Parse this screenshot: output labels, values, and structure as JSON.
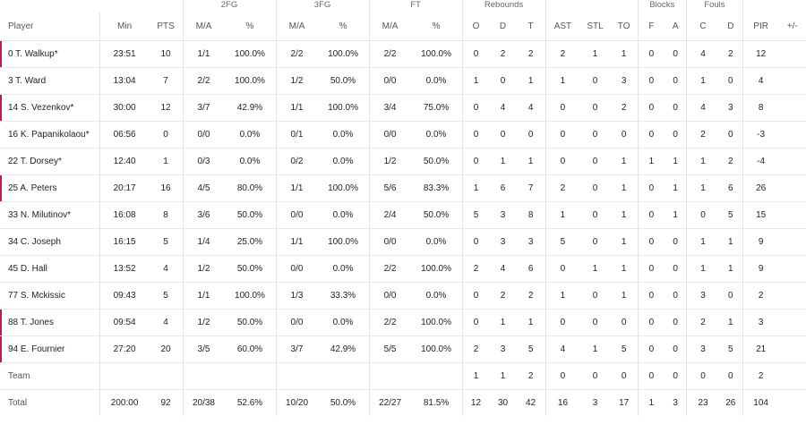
{
  "groups": {
    "fg2": "2FG",
    "fg3": "3FG",
    "ft": "FT",
    "rebounds": "Rebounds",
    "blocks": "Blocks",
    "fouls": "Fouls"
  },
  "headers": [
    "Player",
    "Min",
    "PTS",
    "M/A",
    "%",
    "M/A",
    "%",
    "M/A",
    "%",
    "O",
    "D",
    "T",
    "AST",
    "STL",
    "TO",
    "F",
    "A",
    "C",
    "D",
    "PIR",
    "+/-"
  ],
  "accent_color": "#c2185b",
  "rows": [
    {
      "player": "0 T. Walkup*",
      "accent": true,
      "cells": [
        "23:51",
        "10",
        "1/1",
        "100.0%",
        "2/2",
        "100.0%",
        "2/2",
        "100.0%",
        "0",
        "2",
        "2",
        "2",
        "1",
        "1",
        "0",
        "0",
        "4",
        "2",
        "12",
        ""
      ]
    },
    {
      "player": "3 T. Ward",
      "accent": false,
      "cells": [
        "13:04",
        "7",
        "2/2",
        "100.0%",
        "1/2",
        "50.0%",
        "0/0",
        "0.0%",
        "1",
        "0",
        "1",
        "1",
        "0",
        "3",
        "0",
        "0",
        "1",
        "0",
        "4",
        ""
      ]
    },
    {
      "player": "14 S. Vezenkov*",
      "accent": true,
      "cells": [
        "30:00",
        "12",
        "3/7",
        "42.9%",
        "1/1",
        "100.0%",
        "3/4",
        "75.0%",
        "0",
        "4",
        "4",
        "0",
        "0",
        "2",
        "0",
        "0",
        "4",
        "3",
        "8",
        ""
      ]
    },
    {
      "player": "16 K. Papanikolaou*",
      "accent": false,
      "cells": [
        "06:56",
        "0",
        "0/0",
        "0.0%",
        "0/1",
        "0.0%",
        "0/0",
        "0.0%",
        "0",
        "0",
        "0",
        "0",
        "0",
        "0",
        "0",
        "0",
        "2",
        "0",
        "-3",
        ""
      ]
    },
    {
      "player": "22 T. Dorsey*",
      "accent": false,
      "cells": [
        "12:40",
        "1",
        "0/3",
        "0.0%",
        "0/2",
        "0.0%",
        "1/2",
        "50.0%",
        "0",
        "1",
        "1",
        "0",
        "0",
        "1",
        "1",
        "1",
        "1",
        "2",
        "-4",
        ""
      ]
    },
    {
      "player": "25 A. Peters",
      "accent": true,
      "cells": [
        "20:17",
        "16",
        "4/5",
        "80.0%",
        "1/1",
        "100.0%",
        "5/6",
        "83.3%",
        "1",
        "6",
        "7",
        "2",
        "0",
        "1",
        "0",
        "1",
        "1",
        "6",
        "26",
        ""
      ]
    },
    {
      "player": "33 N. Milutinov*",
      "accent": false,
      "cells": [
        "16:08",
        "8",
        "3/6",
        "50.0%",
        "0/0",
        "0.0%",
        "2/4",
        "50.0%",
        "5",
        "3",
        "8",
        "1",
        "0",
        "1",
        "0",
        "1",
        "0",
        "5",
        "15",
        ""
      ]
    },
    {
      "player": "34 C. Joseph",
      "accent": false,
      "cells": [
        "16:15",
        "5",
        "1/4",
        "25.0%",
        "1/1",
        "100.0%",
        "0/0",
        "0.0%",
        "0",
        "3",
        "3",
        "5",
        "0",
        "1",
        "0",
        "0",
        "1",
        "1",
        "9",
        ""
      ]
    },
    {
      "player": "45 D. Hall",
      "accent": false,
      "cells": [
        "13:52",
        "4",
        "1/2",
        "50.0%",
        "0/0",
        "0.0%",
        "2/2",
        "100.0%",
        "2",
        "4",
        "6",
        "0",
        "1",
        "1",
        "0",
        "0",
        "1",
        "1",
        "9",
        ""
      ]
    },
    {
      "player": "77 S. Mckissic",
      "accent": false,
      "cells": [
        "09:43",
        "5",
        "1/1",
        "100.0%",
        "1/3",
        "33.3%",
        "0/0",
        "0.0%",
        "0",
        "2",
        "2",
        "1",
        "0",
        "1",
        "0",
        "0",
        "3",
        "0",
        "2",
        ""
      ]
    },
    {
      "player": "88 T. Jones",
      "accent": true,
      "cells": [
        "09:54",
        "4",
        "1/2",
        "50.0%",
        "0/0",
        "0.0%",
        "2/2",
        "100.0%",
        "0",
        "1",
        "1",
        "0",
        "0",
        "0",
        "0",
        "0",
        "2",
        "1",
        "3",
        ""
      ]
    },
    {
      "player": "94 E. Fournier",
      "accent": true,
      "cells": [
        "27:20",
        "20",
        "3/5",
        "60.0%",
        "3/7",
        "42.9%",
        "5/5",
        "100.0%",
        "2",
        "3",
        "5",
        "4",
        "1",
        "5",
        "0",
        "0",
        "3",
        "5",
        "21",
        ""
      ]
    },
    {
      "player": "Team",
      "accent": false,
      "kind": "team",
      "cells": [
        "",
        "",
        "",
        "",
        "",
        "",
        "",
        "",
        "1",
        "1",
        "2",
        "0",
        "0",
        "0",
        "0",
        "0",
        "0",
        "0",
        "2",
        ""
      ]
    },
    {
      "player": "Total",
      "accent": false,
      "kind": "total",
      "cells": [
        "200:00",
        "92",
        "20/38",
        "52.6%",
        "10/20",
        "50.0%",
        "22/27",
        "81.5%",
        "12",
        "30",
        "42",
        "16",
        "3",
        "17",
        "1",
        "3",
        "23",
        "26",
        "104",
        ""
      ]
    }
  ]
}
